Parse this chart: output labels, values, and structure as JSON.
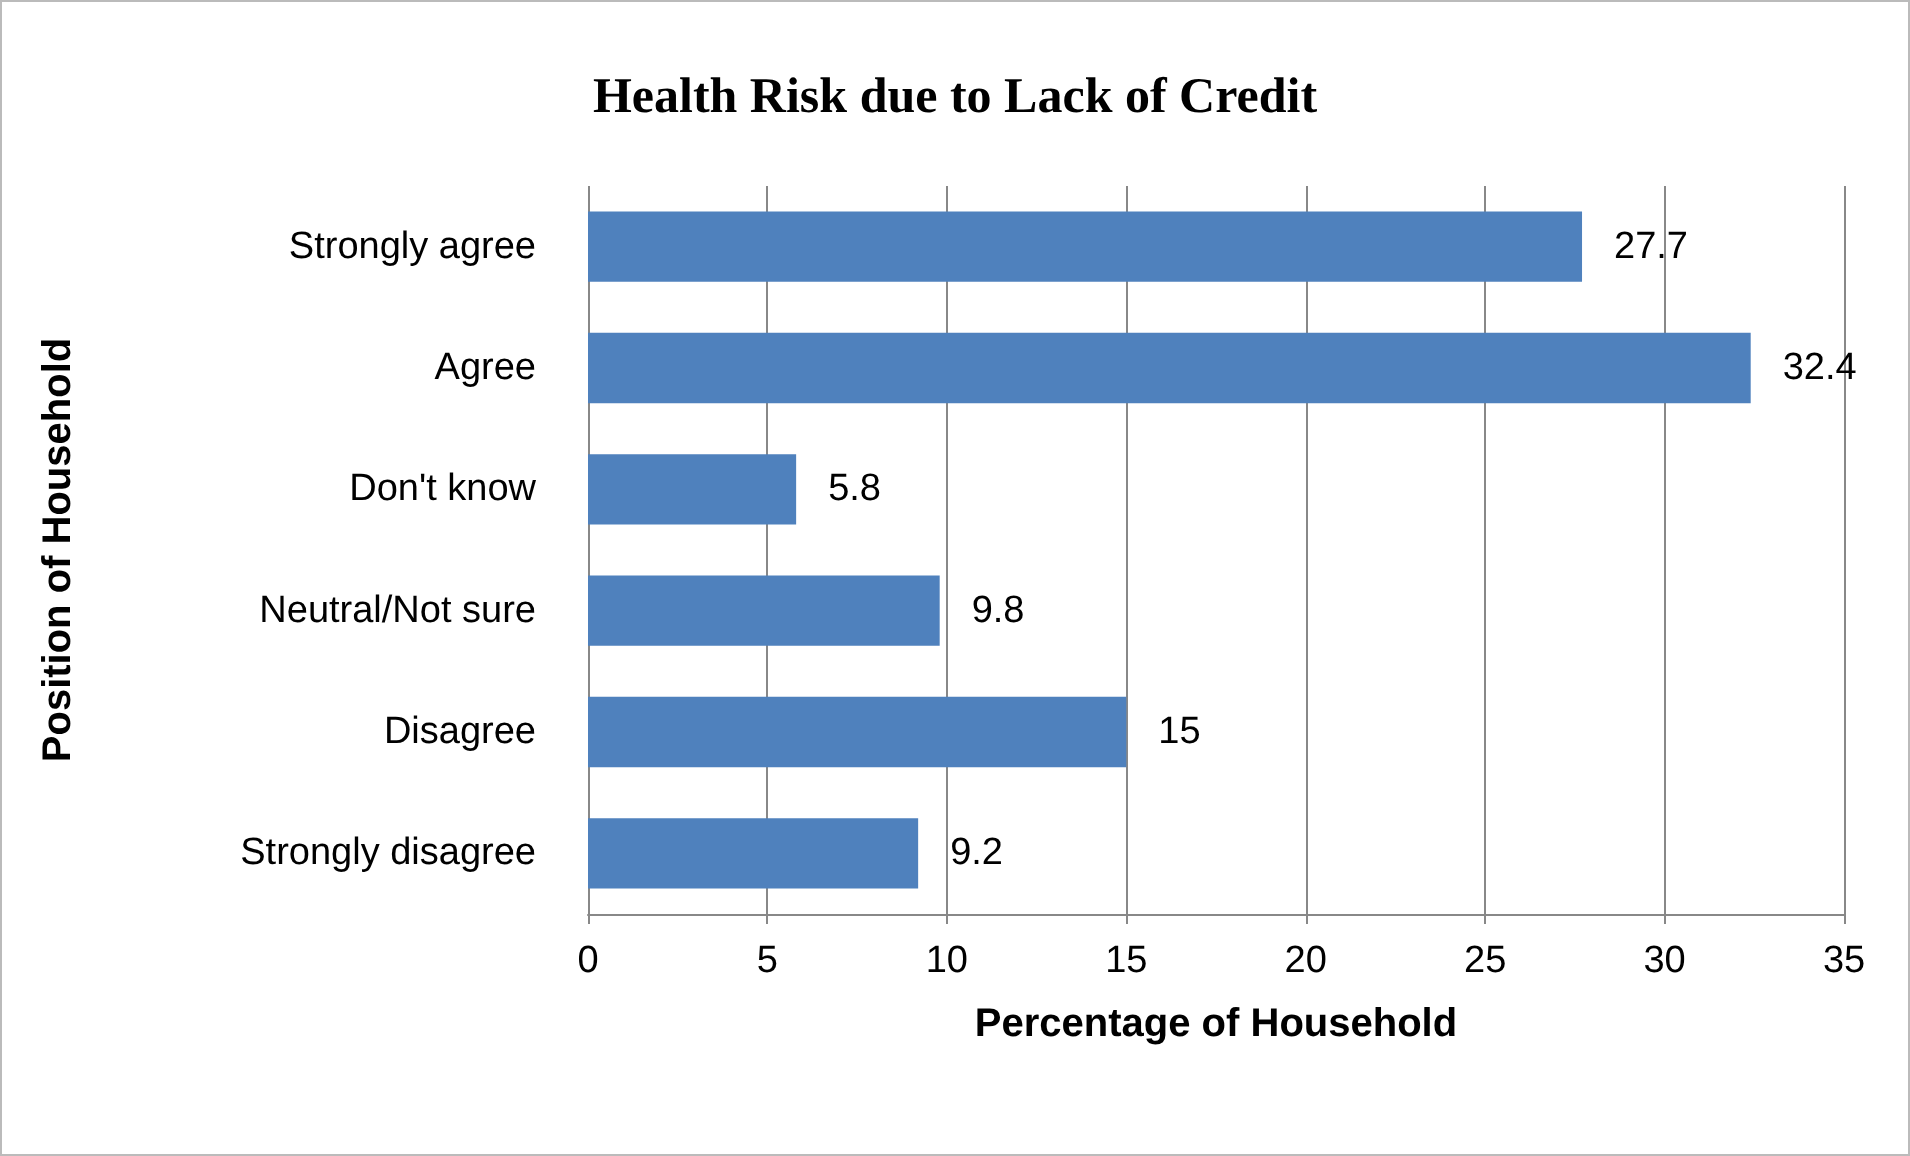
{
  "chart_data": {
    "type": "bar",
    "orientation": "horizontal",
    "title": "Health Risk due to Lack of Credit",
    "xlabel": "Percentage of Household",
    "ylabel": "Position of Household",
    "categories": [
      "Strongly agree",
      "Agree",
      "Don't know",
      "Neutral/Not sure",
      "Disagree",
      "Strongly disagree"
    ],
    "values": [
      27.7,
      32.4,
      5.8,
      9.8,
      15,
      9.2
    ],
    "color": "#4f81bd",
    "xlim": [
      0,
      35
    ],
    "xticks": [
      0,
      5,
      10,
      15,
      20,
      25,
      30,
      35
    ],
    "grid": "x",
    "data_labels": true
  }
}
